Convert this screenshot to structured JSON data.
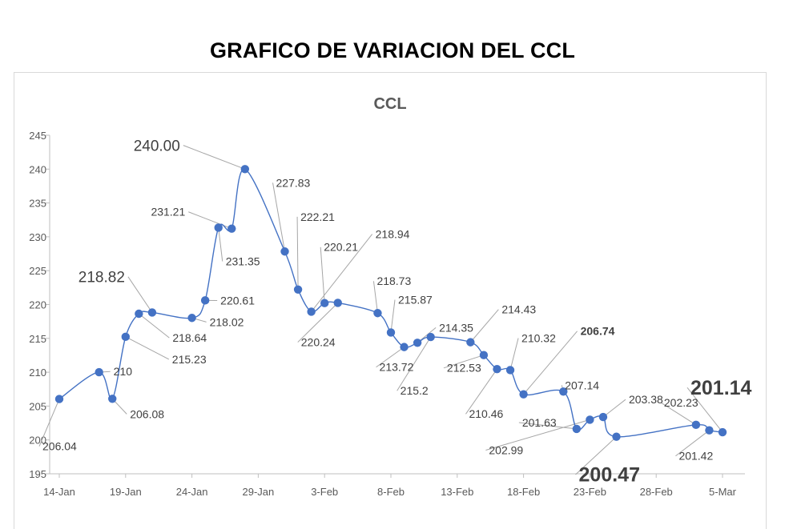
{
  "page_title": "GRAFICO DE VARIACION DEL CCL",
  "chart_data": {
    "type": "line",
    "title": "CCL",
    "xlabel": "",
    "ylabel": "",
    "ylim": [
      195,
      245
    ],
    "y_ticks": [
      195,
      200,
      205,
      210,
      215,
      220,
      225,
      230,
      235,
      240,
      245
    ],
    "x_ticks": [
      "14-Jan",
      "19-Jan",
      "24-Jan",
      "29-Jan",
      "3-Feb",
      "8-Feb",
      "13-Feb",
      "18-Feb",
      "23-Feb",
      "28-Feb",
      "5-Mar"
    ],
    "x_ticks_day": [
      0,
      5,
      10,
      15,
      20,
      25,
      30,
      35,
      40,
      45,
      50
    ],
    "grid": false,
    "line_color": "#4472c4",
    "point_color": "#4472c4",
    "series": [
      {
        "points": [
          {
            "x": "14-Jan",
            "day": 0,
            "y": 206.04,
            "label": "206.04"
          },
          {
            "x": "17-Jan",
            "day": 3,
            "y": 210,
            "label": "210"
          },
          {
            "x": "18-Jan",
            "day": 4,
            "y": 206.08,
            "label": "206.08"
          },
          {
            "x": "19-Jan",
            "day": 5,
            "y": 215.23,
            "label": "215.23"
          },
          {
            "x": "20-Jan",
            "day": 6,
            "y": 218.64,
            "label": "218.64"
          },
          {
            "x": "21-Jan",
            "day": 7,
            "y": 218.82,
            "label": "218.82",
            "emphasis": "large"
          },
          {
            "x": "24-Jan",
            "day": 10,
            "y": 218.02,
            "label": "218.02"
          },
          {
            "x": "25-Jan",
            "day": 11,
            "y": 220.61,
            "label": "220.61"
          },
          {
            "x": "26-Jan",
            "day": 12,
            "y": 231.35,
            "label": "231.35"
          },
          {
            "x": "27-Jan",
            "day": 13,
            "y": 231.21,
            "label": "231.21"
          },
          {
            "x": "28-Jan",
            "day": 14,
            "y": 240.0,
            "label": "240.00",
            "emphasis": "large"
          },
          {
            "x": "31-Jan",
            "day": 17,
            "y": 227.83,
            "label": "227.83"
          },
          {
            "x": "1-Feb",
            "day": 18,
            "y": 222.21,
            "label": "222.21"
          },
          {
            "x": "2-Feb",
            "day": 19,
            "y": 218.94,
            "label": "218.94"
          },
          {
            "x": "3-Feb",
            "day": 20,
            "y": 220.21,
            "label": "220.21"
          },
          {
            "x": "4-Feb",
            "day": 21,
            "y": 220.24,
            "label": "220.24"
          },
          {
            "x": "7-Feb",
            "day": 24,
            "y": 218.73,
            "label": "218.73"
          },
          {
            "x": "8-Feb",
            "day": 25,
            "y": 215.87,
            "label": "215.87"
          },
          {
            "x": "9-Feb",
            "day": 26,
            "y": 213.72,
            "label": "213.72"
          },
          {
            "x": "10-Feb",
            "day": 27,
            "y": 214.35,
            "label": "214.35"
          },
          {
            "x": "11-Feb",
            "day": 28,
            "y": 215.2,
            "label": "215.2"
          },
          {
            "x": "14-Feb",
            "day": 31,
            "y": 214.43,
            "label": "214.43"
          },
          {
            "x": "15-Feb",
            "day": 32,
            "y": 212.53,
            "label": "212.53"
          },
          {
            "x": "16-Feb",
            "day": 33,
            "y": 210.46,
            "label": "210.46"
          },
          {
            "x": "17-Feb",
            "day": 34,
            "y": 210.32,
            "label": "210.32"
          },
          {
            "x": "18-Feb",
            "day": 35,
            "y": 206.74,
            "label": "206.74",
            "emphasis": "bold"
          },
          {
            "x": "21-Feb",
            "day": 38,
            "y": 207.14,
            "label": "207.14"
          },
          {
            "x": "22-Feb",
            "day": 39,
            "y": 201.63,
            "label": "201.63"
          },
          {
            "x": "23-Feb",
            "day": 40,
            "y": 202.99,
            "label": "202.99"
          },
          {
            "x": "24-Feb",
            "day": 41,
            "y": 203.38,
            "label": "203.38"
          },
          {
            "x": "25-Feb",
            "day": 42,
            "y": 200.47,
            "label": "200.47",
            "emphasis": "xlarge"
          },
          {
            "x": "3-Mar",
            "day": 48,
            "y": 202.23,
            "label": "202.23"
          },
          {
            "x": "4-Mar",
            "day": 49,
            "y": 201.42,
            "label": "201.42"
          },
          {
            "x": "5-Mar",
            "day": 50,
            "y": 201.14,
            "label": "201.14",
            "emphasis": "xlarge"
          }
        ]
      }
    ]
  }
}
